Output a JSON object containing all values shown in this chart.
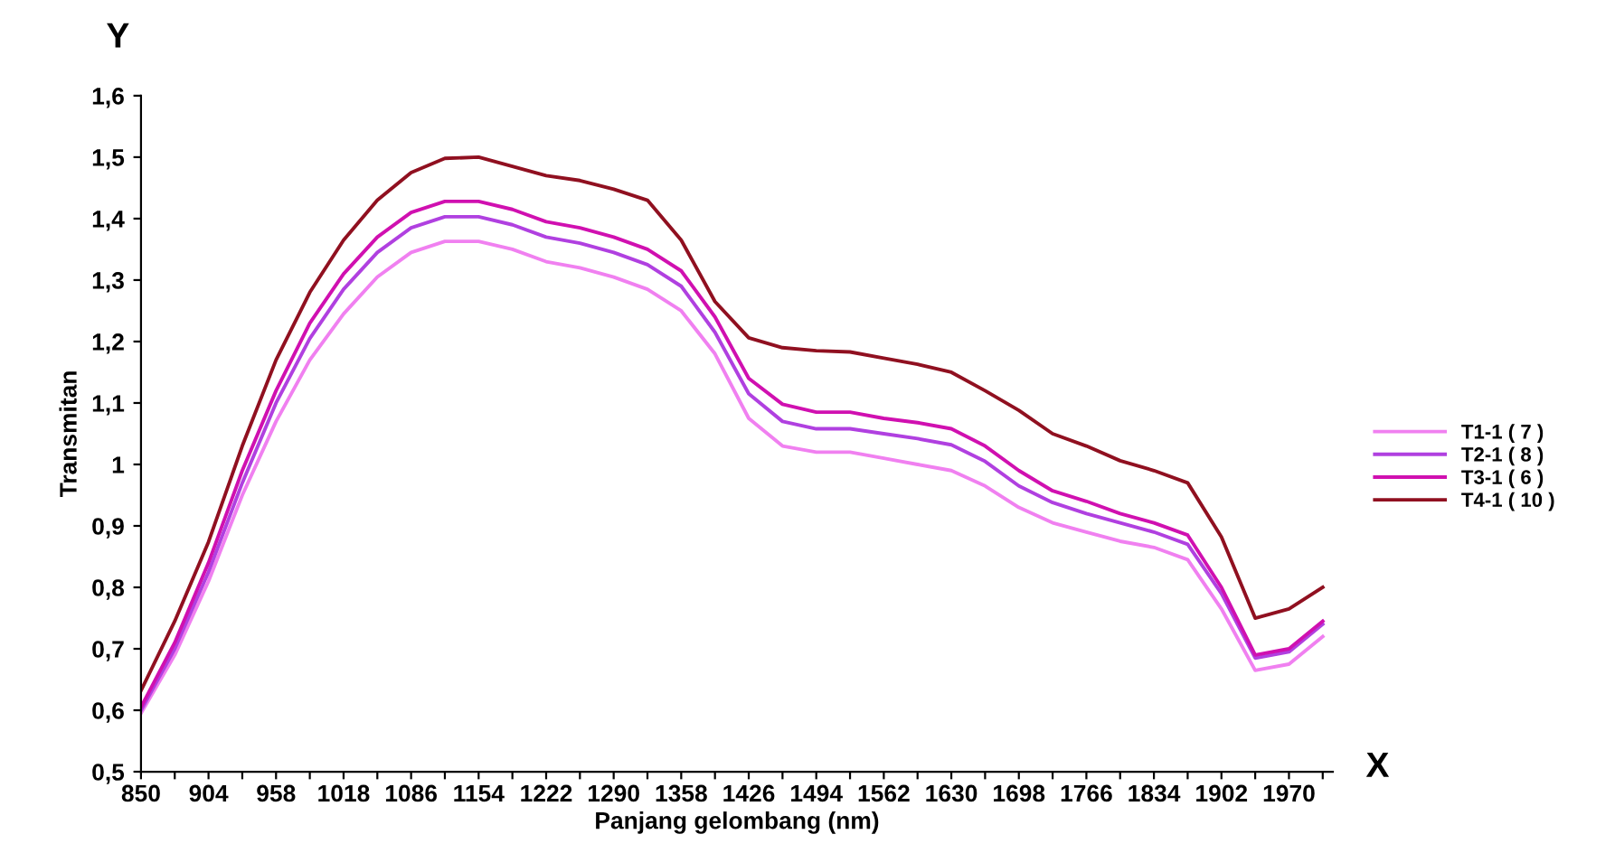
{
  "chart_data": {
    "type": "line",
    "xlabel": "Panjang gelombang (nm)",
    "ylabel": "Transmitan",
    "annotations": [
      "Y",
      "X"
    ],
    "categories": [
      "850",
      null,
      "904",
      null,
      "958",
      null,
      "1018",
      null,
      "1086",
      null,
      "1154",
      null,
      "1222",
      null,
      "1290",
      null,
      "1358",
      null,
      "1426",
      null,
      "1494",
      null,
      "1562",
      null,
      "1630",
      null,
      "1698",
      null,
      "1766",
      null,
      "1834",
      null,
      "1902",
      null,
      "1970",
      null
    ],
    "series": [
      {
        "name": "T1-1 ( 7 )",
        "color": "#f080f0",
        "values": [
          0.595,
          0.69,
          0.81,
          0.95,
          1.07,
          1.17,
          1.245,
          1.305,
          1.345,
          1.363,
          1.363,
          1.35,
          1.33,
          1.32,
          1.305,
          1.285,
          1.25,
          1.18,
          1.075,
          1.03,
          1.02,
          1.02,
          1.01,
          1.0,
          0.99,
          0.965,
          0.93,
          0.905,
          0.89,
          0.875,
          0.865,
          0.845,
          0.765,
          0.665,
          0.675,
          0.72
        ]
      },
      {
        "name": "T2-1 ( 8 )",
        "color": "#b040e0",
        "values": [
          0.6,
          0.7,
          0.825,
          0.97,
          1.1,
          1.205,
          1.285,
          1.345,
          1.385,
          1.403,
          1.403,
          1.39,
          1.37,
          1.36,
          1.345,
          1.325,
          1.29,
          1.215,
          1.115,
          1.07,
          1.058,
          1.058,
          1.05,
          1.042,
          1.032,
          1.005,
          0.965,
          0.938,
          0.92,
          0.905,
          0.89,
          0.87,
          0.79,
          0.685,
          0.695,
          0.74
        ]
      },
      {
        "name": "T3-1 ( 6 )",
        "color": "#d010b0",
        "values": [
          0.605,
          0.71,
          0.84,
          0.99,
          1.12,
          1.23,
          1.31,
          1.37,
          1.41,
          1.428,
          1.428,
          1.415,
          1.395,
          1.385,
          1.37,
          1.35,
          1.315,
          1.24,
          1.14,
          1.098,
          1.085,
          1.085,
          1.075,
          1.068,
          1.058,
          1.03,
          0.99,
          0.957,
          0.94,
          0.92,
          0.905,
          0.885,
          0.8,
          0.69,
          0.7,
          0.745
        ]
      },
      {
        "name": "T4-1 ( 10 )",
        "color": "#901020",
        "values": [
          0.632,
          0.745,
          0.874,
          1.03,
          1.17,
          1.28,
          1.365,
          1.43,
          1.475,
          1.498,
          1.5,
          1.485,
          1.47,
          1.462,
          1.448,
          1.43,
          1.365,
          1.265,
          1.206,
          1.19,
          1.185,
          1.183,
          1.173,
          1.163,
          1.15,
          1.12,
          1.088,
          1.05,
          1.03,
          1.006,
          0.99,
          0.97,
          0.882,
          0.75,
          0.765,
          0.8
        ]
      }
    ],
    "ylim": [
      0.5,
      1.6
    ],
    "yticks": [
      {
        "value": 0.5,
        "label": "0,5"
      },
      {
        "value": 0.6,
        "label": "0,6"
      },
      {
        "value": 0.7,
        "label": "0,7"
      },
      {
        "value": 0.8,
        "label": "0,8"
      },
      {
        "value": 0.9,
        "label": "0,9"
      },
      1,
      {
        "value": 1.1,
        "label": "1,1"
      },
      {
        "value": 1.2,
        "label": "1,2"
      },
      {
        "value": 1.3,
        "label": "1,3"
      },
      {
        "value": 1.4,
        "label": "1,4"
      },
      {
        "value": 1.5,
        "label": "1,5"
      },
      {
        "value": 1.6,
        "label": "1,6"
      }
    ],
    "grid": false,
    "legend": "right",
    "marker": "none",
    "line_style": "solid"
  }
}
